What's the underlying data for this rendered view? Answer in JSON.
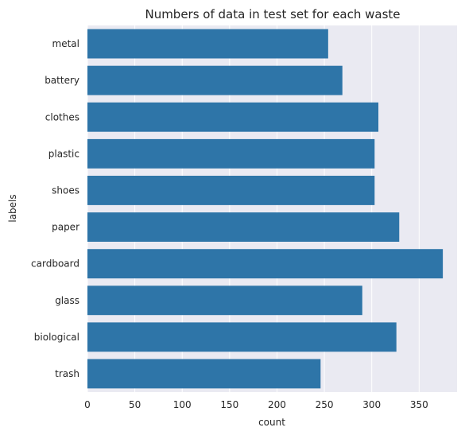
{
  "chart_data": {
    "type": "bar",
    "orientation": "horizontal",
    "title": "Numbers of data in test set for each waste",
    "xlabel": "count",
    "ylabel": "labels",
    "categories": [
      "metal",
      "battery",
      "clothes",
      "plastic",
      "shoes",
      "paper",
      "cardboard",
      "glass",
      "biological",
      "trash"
    ],
    "values": [
      254,
      269,
      307,
      303,
      303,
      329,
      375,
      290,
      326,
      246
    ],
    "xlim": [
      0,
      390
    ],
    "xticks": [
      0,
      50,
      100,
      150,
      200,
      250,
      300,
      350
    ],
    "grid": true,
    "bar_color": "#2e75a8",
    "background_color": "#eaeaf2"
  }
}
